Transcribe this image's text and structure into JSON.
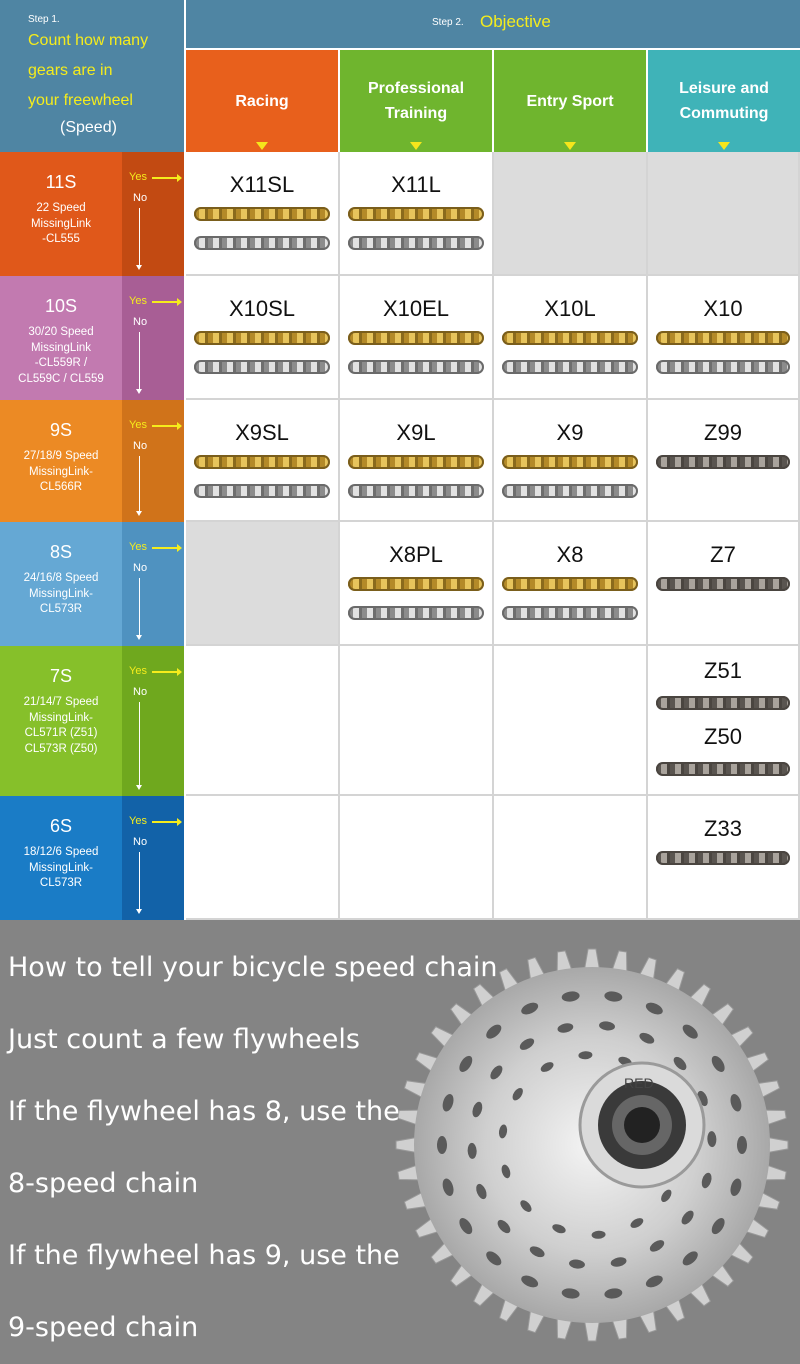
{
  "header": {
    "step1_label": "Step 1.",
    "step1_lines": [
      "Count how many",
      "gears are in",
      "your freewheel"
    ],
    "step1_speed": "(Speed)",
    "step2_label": "Step 2.",
    "step2_title": "Objective"
  },
  "objectives": [
    {
      "label_line1": "Racing",
      "label_line2": "",
      "color": "#e8601c"
    },
    {
      "label_line1": "Professional",
      "label_line2": "Training",
      "color": "#6fb52e"
    },
    {
      "label_line1": "Entry Sport",
      "label_line2": "",
      "color": "#6fb52e"
    },
    {
      "label_line1": "Leisure and",
      "label_line2": "Commuting",
      "color": "#3fb3b8"
    }
  ],
  "flow": {
    "yes": "Yes",
    "no": "No"
  },
  "rows": [
    {
      "speed": "11S",
      "desc": [
        "22 Speed",
        "MissingLink",
        "-CL555"
      ],
      "color": "#e0581a",
      "side_color": "#c24a12",
      "cells": [
        {
          "name": "X11SL",
          "chains": [
            "gold",
            "silver"
          ]
        },
        {
          "name": "X11L",
          "chains": [
            "gold",
            "silver"
          ]
        },
        null,
        null
      ]
    },
    {
      "speed": "10S",
      "desc": [
        "30/20 Speed",
        "MissingLink",
        "-CL559R /",
        "CL559C / CL559"
      ],
      "color": "#c27ab0",
      "side_color": "#a85e95",
      "cells": [
        {
          "name": "X10SL",
          "chains": [
            "gold",
            "silver"
          ]
        },
        {
          "name": "X10EL",
          "chains": [
            "gold",
            "silver"
          ]
        },
        {
          "name": "X10L",
          "chains": [
            "gold",
            "silver"
          ]
        },
        {
          "name": "X10",
          "chains": [
            "gold",
            "silver"
          ]
        }
      ]
    },
    {
      "speed": "9S",
      "desc": [
        "27/18/9 Speed",
        "MissingLink-",
        "CL566R"
      ],
      "color": "#ec8a24",
      "side_color": "#d0731a",
      "cells": [
        {
          "name": "X9SL",
          "chains": [
            "gold",
            "silver"
          ]
        },
        {
          "name": "X9L",
          "chains": [
            "gold",
            "silver"
          ]
        },
        {
          "name": "X9",
          "chains": [
            "gold",
            "silver"
          ]
        },
        {
          "name": "Z99",
          "chains": [
            "dark"
          ]
        }
      ]
    },
    {
      "speed": "8S",
      "desc": [
        "24/16/8 Speed",
        "MissingLink-",
        "CL573R"
      ],
      "color": "#65a8d4",
      "side_color": "#4f92c0",
      "cells": [
        null,
        {
          "name": "X8PL",
          "chains": [
            "gold",
            "silver"
          ]
        },
        {
          "name": "X8",
          "chains": [
            "gold",
            "silver"
          ]
        },
        {
          "name": "Z7",
          "chains": [
            "dark"
          ]
        }
      ]
    },
    {
      "speed": "7S",
      "desc": [
        "21/14/7 Speed",
        "MissingLink-",
        "CL571R (Z51)",
        "CL573R (Z50)"
      ],
      "color": "#86c02a",
      "side_color": "#6fa81e",
      "cells": [
        "blank",
        "blank",
        "blank",
        {
          "name": "Z51",
          "chains": [
            "dark"
          ],
          "name2": "Z50",
          "chains2": [
            "dark"
          ]
        }
      ]
    },
    {
      "speed": "6S",
      "desc": [
        "18/12/6 Speed",
        "MissingLink-",
        "CL573R"
      ],
      "color": "#1a7cc6",
      "side_color": "#1262a8",
      "cells": [
        "blank",
        "blank",
        "blank",
        {
          "name": "Z33",
          "chains": [
            "dark"
          ]
        }
      ]
    }
  ],
  "bottom_text": [
    "How to tell your bicycle speed chain",
    "Just count a few flywheels",
    "If the flywheel has 8, use the",
    "8-speed chain",
    "If the flywheel has 9, use the",
    " 9-speed chain"
  ],
  "cassette_brand": "RED"
}
